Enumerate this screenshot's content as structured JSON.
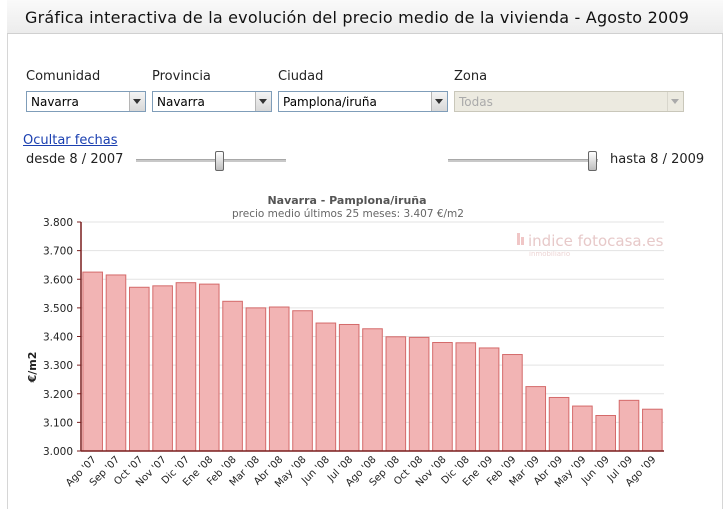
{
  "page": {
    "title": "Gráfica interactiva de la evolución del precio medio de la vivienda - Agosto 2009"
  },
  "filters": {
    "comunidad": {
      "label": "Comunidad",
      "value": "Navarra"
    },
    "provincia": {
      "label": "Provincia",
      "value": "Navarra"
    },
    "ciudad": {
      "label": "Ciudad",
      "value": "Pamplona/iruña"
    },
    "zona": {
      "label": "Zona",
      "value": "Todas"
    }
  },
  "dates": {
    "toggle_label": "Ocultar fechas",
    "from_label": "desde 8 / 2007",
    "to_label": "hasta 8 / 2009"
  },
  "watermark": {
    "brand": "indice fotocasa.es",
    "sub": "inmobiliario"
  },
  "colors": {
    "bar_fill": "#f2b4b4",
    "bar_stroke": "#d46a6a",
    "axis": "#7a1f1f",
    "grid": "#e3e3e3"
  },
  "chart_data": {
    "type": "bar",
    "title": "Navarra -  Pamplona/iruña",
    "subtitle": "precio medio últimos 25 meses: 3.407 €/m2",
    "xlabel": "",
    "ylabel": "€/m2",
    "ylim": [
      3000,
      3800
    ],
    "yticks": [
      "3.000",
      "3.100",
      "3.200",
      "3.300",
      "3.400",
      "3.500",
      "3.600",
      "3.700",
      "3.800"
    ],
    "grid": true,
    "categories": [
      "Ago '07",
      "Sep '07",
      "Oct '07",
      "Nov '07",
      "Dic '07",
      "Ene '08",
      "Feb '08",
      "Mar '08",
      "Abr '08",
      "May '08",
      "Jun '08",
      "Jul '08",
      "Ago '08",
      "Sep '08",
      "Oct '08",
      "Nov '08",
      "Dic '08",
      "Ene '09",
      "Feb '09",
      "Mar '09",
      "Abr '09",
      "May '09",
      "Jun '09",
      "Jul '09",
      "Ago '09"
    ],
    "values": [
      3625,
      3615,
      3572,
      3577,
      3588,
      3583,
      3523,
      3500,
      3503,
      3490,
      3447,
      3442,
      3427,
      3399,
      3397,
      3379,
      3378,
      3360,
      3337,
      3225,
      3187,
      3157,
      3124,
      3177,
      3146
    ]
  }
}
